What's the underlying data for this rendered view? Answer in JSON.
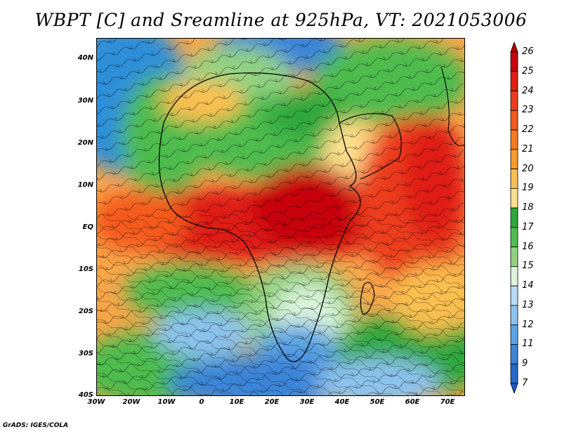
{
  "title": "WBPT [C] and Sreamline at 925hPa, VT: 2021053006",
  "credit": "GrADS: IGES/COLA",
  "map": {
    "lat_labels": [
      "40N",
      "30N",
      "20N",
      "10N",
      "EQ",
      "10S",
      "20S",
      "30S",
      "40S"
    ],
    "lon_labels": [
      "30W",
      "20W",
      "10W",
      "0",
      "10E",
      "20E",
      "30E",
      "40E",
      "50E",
      "60E",
      "70E"
    ],
    "lat_range": [
      -40,
      45
    ],
    "lon_range": [
      -30,
      75
    ]
  },
  "colorbar": {
    "labels": [
      "26",
      "25",
      "24",
      "23",
      "22",
      "21",
      "20",
      "19",
      "18",
      "17",
      "16",
      "15",
      "14",
      "13",
      "12",
      "11",
      "9",
      "7"
    ],
    "colors": [
      "#c8000a",
      "#df1e14",
      "#ec3c1e",
      "#f55a1e",
      "#f77c1e",
      "#fa9b28",
      "#fbbf50",
      "#fde08c",
      "#2ea83c",
      "#4ebc4e",
      "#92d282",
      "#dcf5dc",
      "#b8dcf5",
      "#8cc3ee",
      "#5ca4e4",
      "#3b84d8",
      "#2468cc"
    ],
    "end_low_color": "#1e5ac8",
    "end_high_color": "#b40000"
  }
}
